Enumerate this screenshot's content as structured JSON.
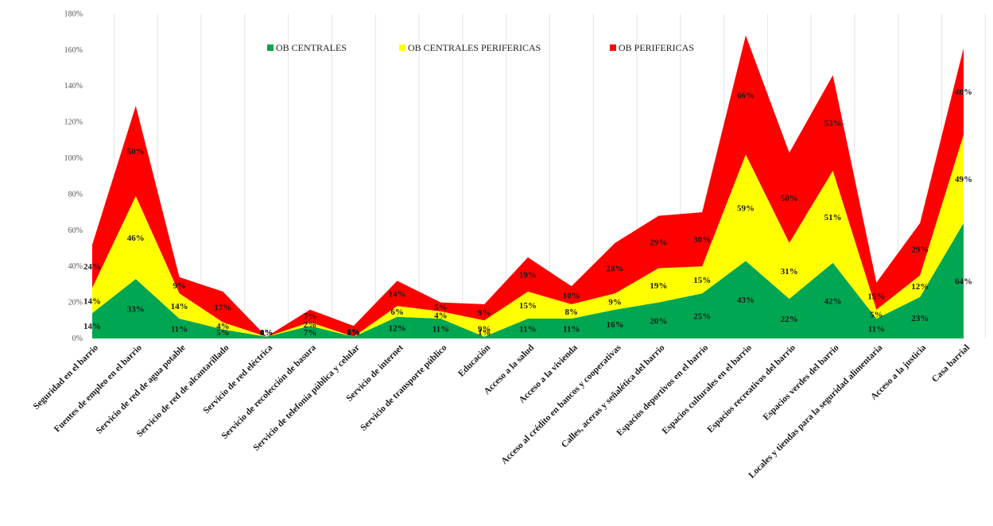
{
  "chart_data": {
    "type": "area",
    "stacked": true,
    "title": "",
    "xlabel": "",
    "ylabel": "",
    "ylim": [
      0,
      1.8
    ],
    "yticks": [
      "0%",
      "20%",
      "40%",
      "60%",
      "80%",
      "100%",
      "120%",
      "140%",
      "160%",
      "180%"
    ],
    "grid": "vertical category gridlines",
    "legend_position": "top-center",
    "categories": [
      "Seguridad en el barrio",
      "Fuentes de empleo en el barrio",
      "Servicio de red de agua potable",
      "Servicio de red de alcantarillado",
      "Servicio de red eléctrica",
      "Servicio de recolección de basura",
      "Servicio de telefonía pública y celular",
      "Servicio de internet",
      "Servicio de transporte público",
      "Educación",
      "Acceso a la salud",
      "Acceso a la vivienda",
      "Acceso al crédito en bancos y cooperativas",
      "Calles, aceras y señalética del barrio",
      "Espacios deportivos en el barrio",
      "Espacios culturales en el barrio",
      "Espacios recreativos del barrio",
      "Espacios verdes del barrio",
      "Locales y tiendas para la seguridad alimentaria",
      "Acceso a la justicia",
      "Casa barrial"
    ],
    "series": [
      {
        "name": "OB CENTRALES",
        "color": "#00a651",
        "values": [
          0.14,
          0.33,
          0.11,
          0.05,
          0.01,
          0.07,
          0.01,
          0.12,
          0.11,
          0.01,
          0.11,
          0.11,
          0.16,
          0.2,
          0.25,
          0.43,
          0.22,
          0.42,
          0.11,
          0.23,
          0.64
        ],
        "labels": [
          "14%",
          "33%",
          "11%",
          "5%",
          "1%",
          "7%",
          "1%",
          "12%",
          "11%",
          "1%",
          "11%",
          "11%",
          "16%",
          "20%",
          "25%",
          "43%",
          "22%",
          "42%",
          "11%",
          "23%",
          "64%"
        ]
      },
      {
        "name": "OB CENTRALES PERIFERICAS",
        "color": "#ffff00",
        "values": [
          0.14,
          0.46,
          0.14,
          0.04,
          0.0,
          0.02,
          0.0,
          0.06,
          0.04,
          0.09,
          0.15,
          0.08,
          0.09,
          0.19,
          0.15,
          0.59,
          0.31,
          0.51,
          0.05,
          0.12,
          0.49
        ],
        "labels": [
          "14%",
          "46%",
          "14%",
          "4%",
          "0%",
          "2%",
          "0%",
          "6%",
          "4%",
          "9%",
          "15%",
          "8%",
          "9%",
          "19%",
          "15%",
          "59%",
          "31%",
          "51%",
          "5%",
          "12%",
          "49%"
        ]
      },
      {
        "name": "OB PERIFERICAS",
        "color": "#ff0000",
        "values": [
          0.24,
          0.5,
          0.09,
          0.17,
          0.0,
          0.07,
          0.06,
          0.14,
          0.05,
          0.09,
          0.19,
          0.1,
          0.28,
          0.29,
          0.3,
          0.66,
          0.5,
          0.53,
          0.15,
          0.29,
          0.48
        ],
        "labels": [
          "24%",
          "50%",
          "9%",
          "17%",
          "0%",
          "7%",
          "6%",
          "14%",
          "5%",
          "9%",
          "19%",
          "10%",
          "28%",
          "29%",
          "30%",
          "66%",
          "50%",
          "53%",
          "15%",
          "29%",
          "48%"
        ]
      }
    ]
  }
}
